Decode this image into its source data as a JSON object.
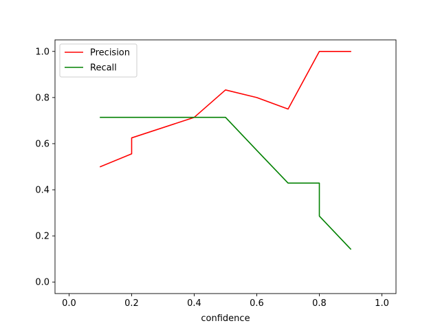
{
  "chart_data": {
    "type": "line",
    "title": "",
    "xlabel": "confidence",
    "ylabel": "",
    "xlim": [
      -0.045,
      1.045
    ],
    "ylim": [
      -0.05,
      1.05
    ],
    "xticks": [
      "0.0",
      "0.2",
      "0.4",
      "0.6",
      "0.8",
      "1.0"
    ],
    "yticks": [
      "0.0",
      "0.2",
      "0.4",
      "0.6",
      "0.8",
      "1.0"
    ],
    "grid": false,
    "legend_position": "upper-left",
    "series": [
      {
        "name": "Precision",
        "color": "#ff0000",
        "x": [
          0.1,
          0.2,
          0.2,
          0.4,
          0.5,
          0.6,
          0.7,
          0.8,
          0.9
        ],
        "y": [
          0.5,
          0.556,
          0.625,
          0.714,
          0.833,
          0.8,
          0.75,
          1.0,
          1.0
        ]
      },
      {
        "name": "Recall",
        "color": "#008000",
        "x": [
          0.1,
          0.2,
          0.3,
          0.4,
          0.5,
          0.6,
          0.7,
          0.8,
          0.8,
          0.9
        ],
        "y": [
          0.714,
          0.714,
          0.714,
          0.714,
          0.714,
          0.571,
          0.429,
          0.429,
          0.286,
          0.143
        ]
      }
    ]
  }
}
